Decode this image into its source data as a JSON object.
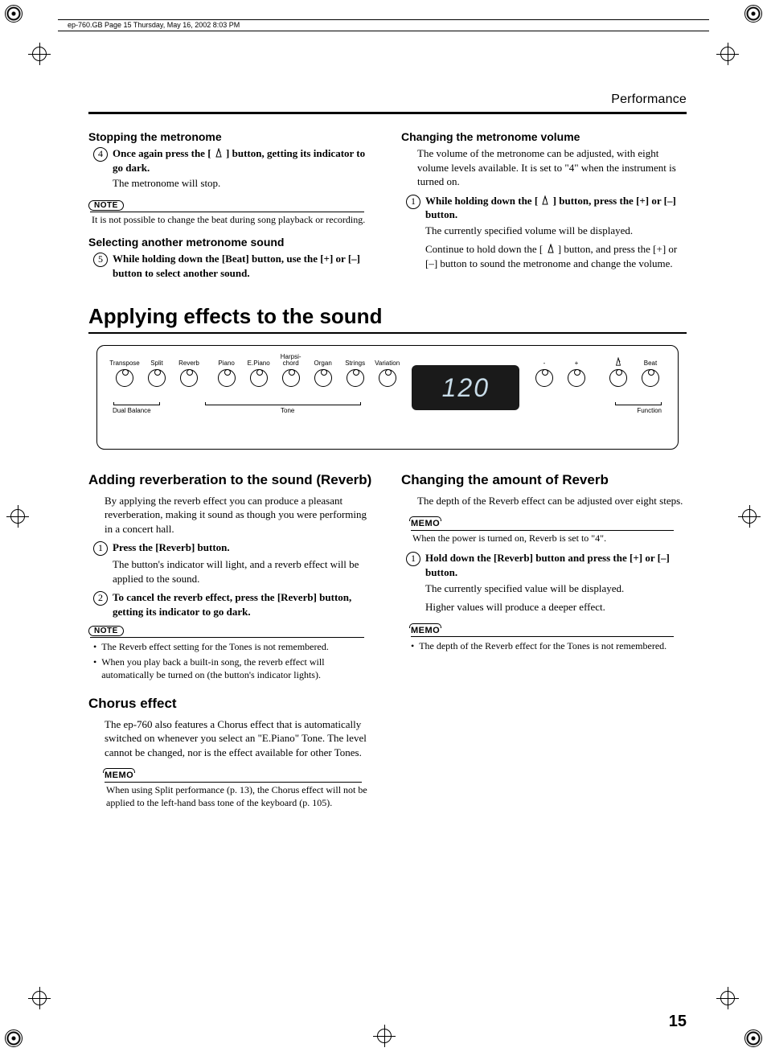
{
  "meta_text": "ep-760.GB  Page 15  Thursday, May 16, 2002  8:03 PM",
  "page_header": "Performance",
  "page_number": "15",
  "top": {
    "left": {
      "h_stopping": "Stopping the metronome",
      "step4_bold": "Once again press the [ ",
      "step4_bold_tail": " ] button, getting its indicator to go dark.",
      "step4_body": "The metronome will stop.",
      "note_label": "NOTE",
      "note_text": "It is not possible to change the beat during song playback or recording.",
      "h_selecting": "Selecting another metronome sound",
      "step5_bold": "While holding down the [Beat] button, use the [+] or [–] button to select another sound."
    },
    "right": {
      "h_volume": "Changing the metronome volume",
      "intro": "The volume of the metronome can be adjusted, with eight volume levels available. It is set to \"4\" when the instrument is turned on.",
      "step1_bold_a": "While holding down the [ ",
      "step1_bold_b": " ] button, press the [+] or [–] button.",
      "l1": "The currently specified volume will be displayed.",
      "l2a": "Continue to hold down the [ ",
      "l2b": " ] button, and press the [+] or [–] button to sound the metronome and change the volume."
    }
  },
  "h1": "Applying effects to the sound",
  "panel": {
    "knobs_left": [
      "Transpose",
      "Split",
      "Reverb"
    ],
    "knobs_tone": [
      "Piano",
      "E.Piano",
      "Harpsi-\nchord",
      "Organ",
      "Strings",
      "Variation"
    ],
    "knobs_right_sym": [
      "-",
      "+"
    ],
    "knob_met_label": "",
    "beat_label": "Beat",
    "display_value": "120",
    "under_dual": "Dual Balance",
    "under_tone": "Tone",
    "under_func": "Function"
  },
  "bottom": {
    "left": {
      "h_reverb": "Adding reverberation to the sound (Reverb)",
      "p1": "By applying the reverb effect you can produce a pleasant reverberation, making it sound as though you were performing in a concert hall.",
      "s1_bold": "Press the [Reverb] button.",
      "s1_body": "The button's indicator will light, and a reverb effect will be applied to the sound.",
      "s2_bold": "To cancel the reverb effect, press the [Reverb] button, getting its indicator to go dark.",
      "note_label": "NOTE",
      "b1": "The Reverb effect setting for the Tones is not remembered.",
      "b2": "When you play back a built-in song, the reverb effect will automatically be turned on (the button's indicator lights).",
      "h_chorus": "Chorus effect",
      "chorus_p": "The ep-760 also features a Chorus effect that is automatically switched on whenever you select an \"E.Piano\" Tone. The level cannot be changed, nor is the effect available for other Tones.",
      "memo_label": "MEMO",
      "memo_text": "When using Split performance (p. 13), the Chorus effect will not be applied to the left-hand bass tone of the keyboard (p. 105)."
    },
    "right": {
      "h_amount": "Changing the amount of Reverb",
      "p1": "The depth of the Reverb effect can be adjusted over eight steps.",
      "memo_label": "MEMO",
      "memo1": "When the power is turned on, Reverb is set to \"4\".",
      "s1_bold": "Hold down the [Reverb] button and press the [+] or [–] button.",
      "s1_l1": "The currently specified value will be displayed.",
      "s1_l2": "Higher values will produce a deeper effect.",
      "memo2_bullet": "The depth of the Reverb effect for the Tones is not remembered."
    }
  }
}
